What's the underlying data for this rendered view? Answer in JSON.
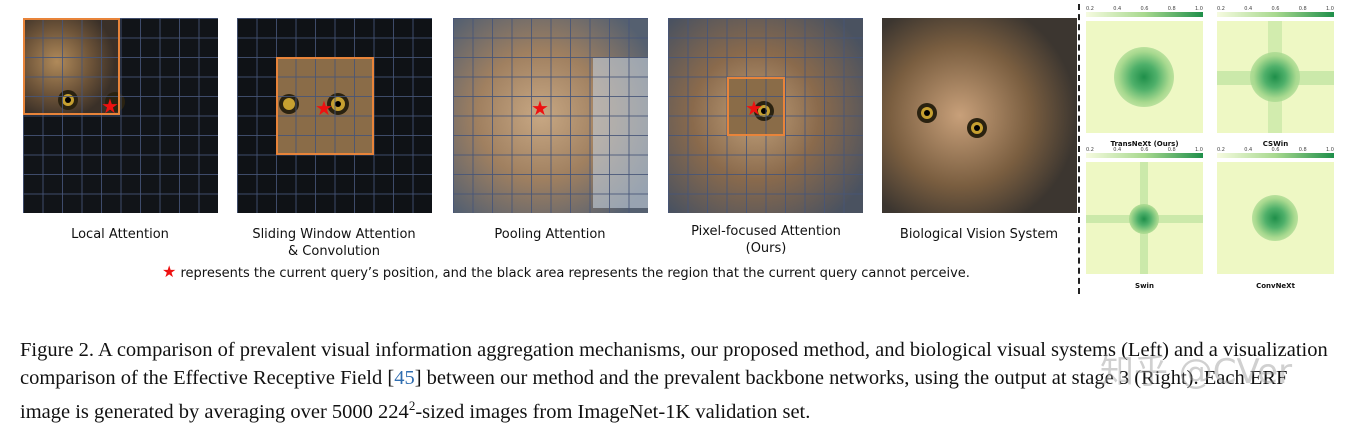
{
  "panels": [
    {
      "label_1": "Local Attention",
      "label_2": ""
    },
    {
      "label_1": "Sliding Window Attention",
      "label_2": "& Convolution"
    },
    {
      "label_1": "Pooling Attention",
      "label_2": ""
    },
    {
      "label_1": "Pixel-focused Attention",
      "label_2": "(Ours)"
    },
    {
      "label_1": "Biological Vision System",
      "label_2": ""
    }
  ],
  "legend": {
    "star": "★",
    "text": "represents the current query’s position, and the black area represents the region that the current query cannot perceive."
  },
  "erf": {
    "ticks": [
      "0.2",
      "0.4",
      "0.6",
      "0.8",
      "1.0"
    ],
    "maps": [
      {
        "label": "TransNeXt (Ours)"
      },
      {
        "label": "CSWin"
      },
      {
        "label": "Swin"
      },
      {
        "label": "ConvNeXt"
      }
    ]
  },
  "caption": {
    "part1": "Figure 2. A comparison of prevalent visual information aggregation mechanisms, our proposed method, and biological visual systems (Left) and a visualization comparison of the Effective Receptive Field [",
    "ref": "45",
    "part2": "] between our method and the prevalent backbone networks, using the output at stage 3 (Right). Each ERF image is generated by averaging over 5000 224",
    "sup": "2",
    "part3": "-sized images from ImageNet-1K validation set."
  },
  "watermark": "知乎 @CVer",
  "colors": {
    "highlight": "#e8843a",
    "star": "#e11111",
    "link": "#2f6db0"
  }
}
